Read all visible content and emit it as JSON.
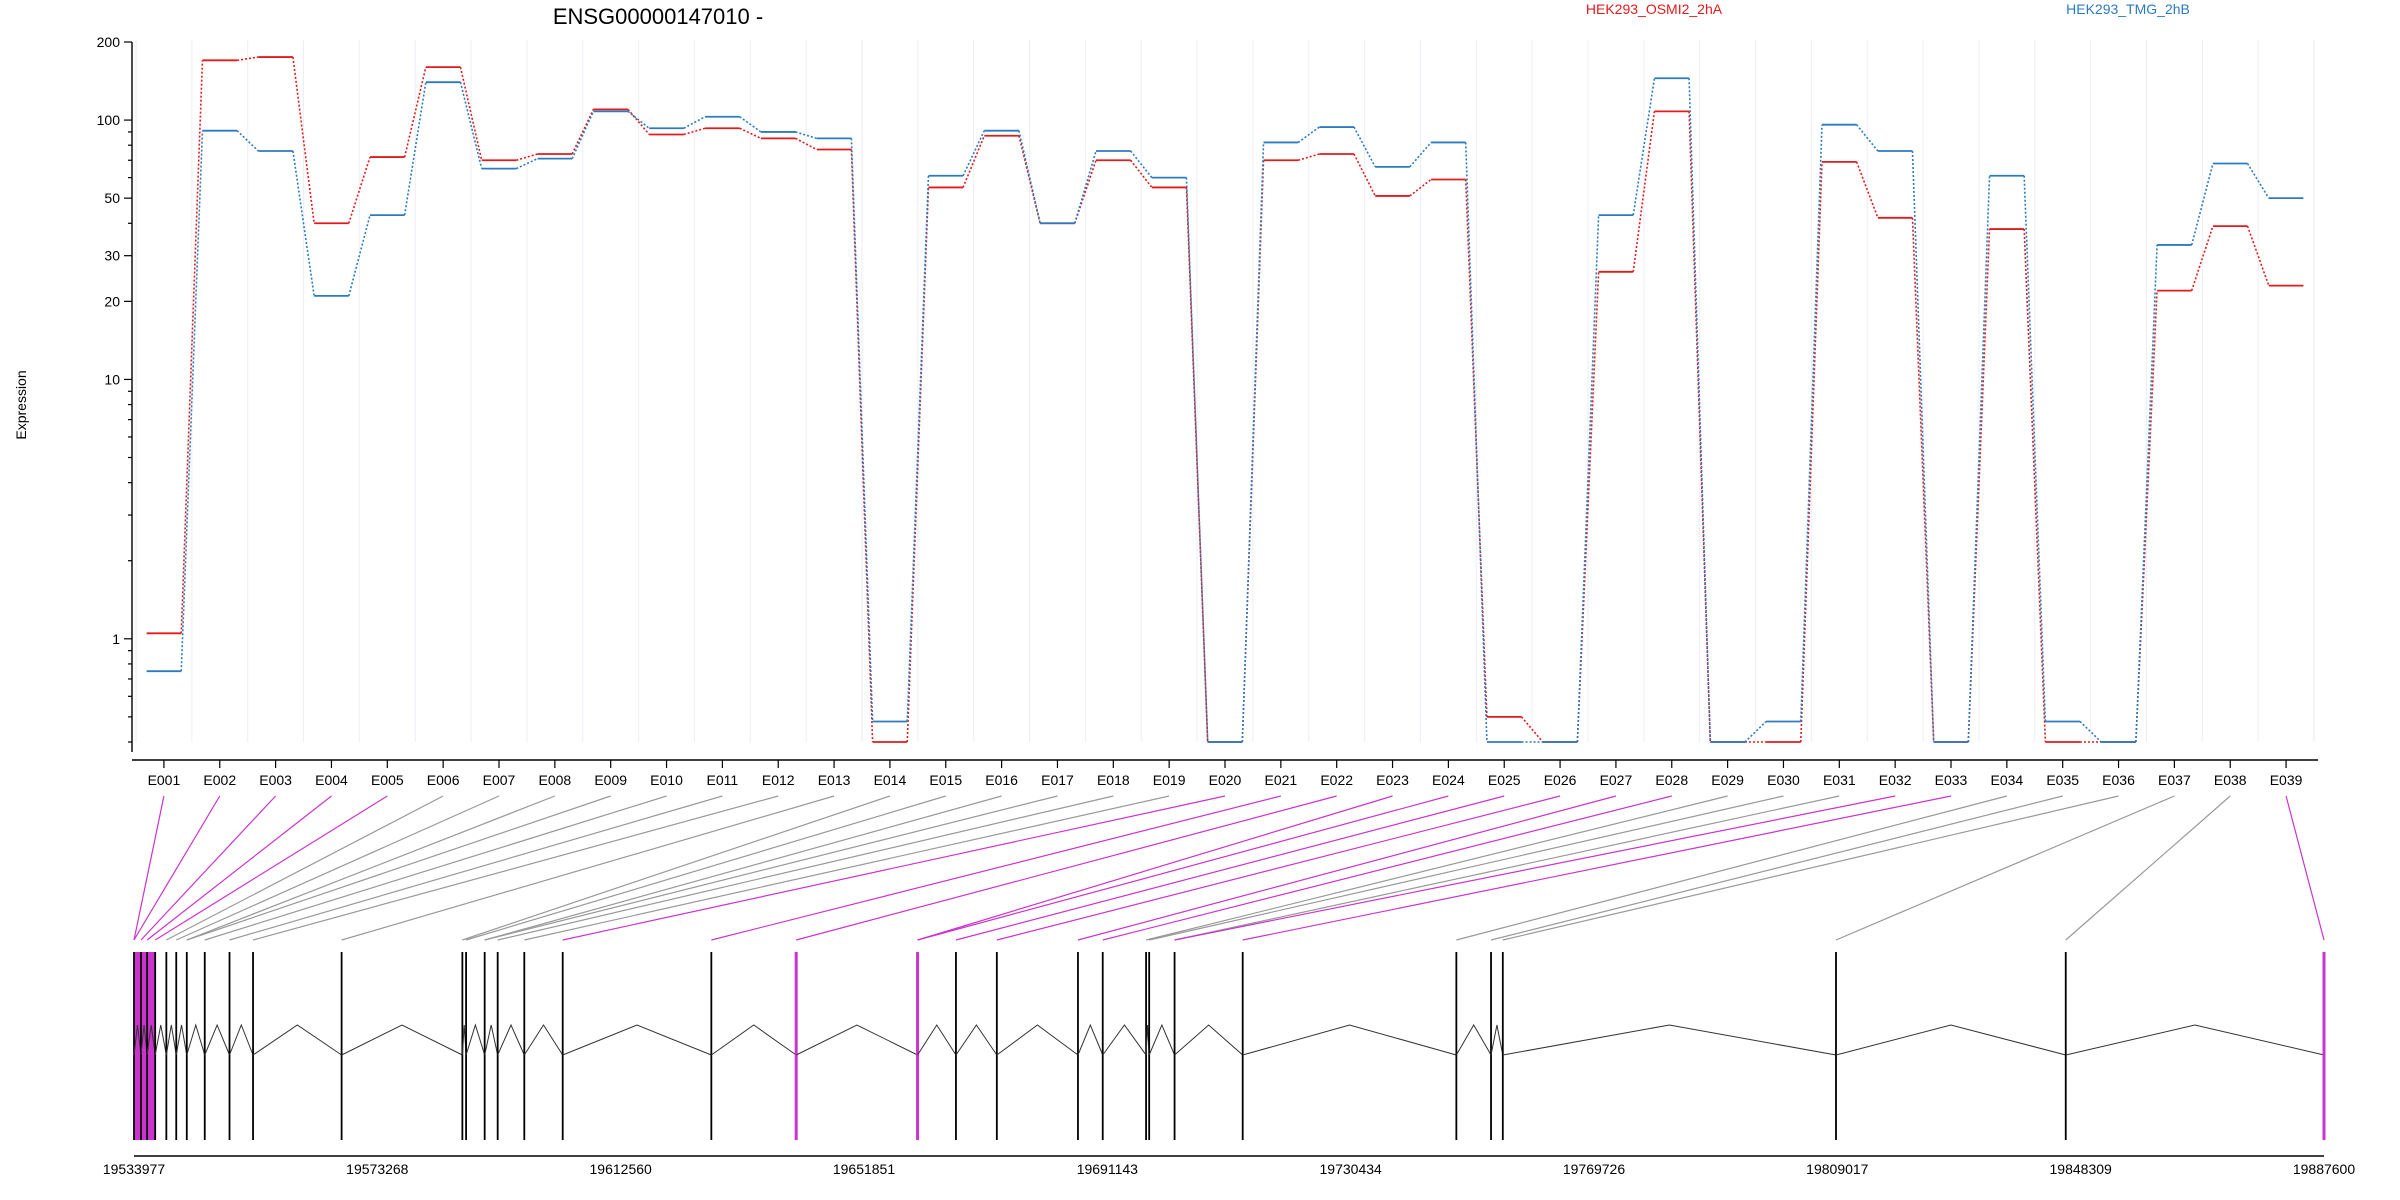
{
  "chart_data": {
    "type": "line",
    "title": "ENSG00000147010 -",
    "ylabel": "Expression",
    "xlabel": "",
    "y_scale": "log",
    "ylim": [
      0.4,
      200
    ],
    "y_ticks": [
      1,
      10,
      20,
      30,
      50,
      100,
      200
    ],
    "grid": "vertical lines at exon boundaries",
    "legend": [
      {
        "name": "HEK293_OSMI2_2hA",
        "color": "#e31a1c",
        "position": "top-center"
      },
      {
        "name": "HEK293_TMG_2hB",
        "color": "#2b7bbf",
        "position": "top-right"
      }
    ],
    "categories": [
      "E001",
      "E002",
      "E003",
      "E004",
      "E005",
      "E006",
      "E007",
      "E008",
      "E009",
      "E010",
      "E011",
      "E012",
      "E013",
      "E014",
      "E015",
      "E016",
      "E017",
      "E018",
      "E019",
      "E020",
      "E021",
      "E022",
      "E023",
      "E024",
      "E025",
      "E026",
      "E027",
      "E028",
      "E029",
      "E030",
      "E031",
      "E032",
      "E033",
      "E034",
      "E035",
      "E036",
      "E037",
      "E038",
      "E039"
    ],
    "series": [
      {
        "name": "HEK293_OSMI2_2hA",
        "color": "#e31a1c",
        "values": [
          1.05,
          170,
          175,
          40,
          72,
          160,
          70,
          74,
          110,
          88,
          93,
          85,
          77,
          0.4,
          55,
          87,
          40,
          70,
          55,
          0.4,
          70,
          74,
          51,
          59,
          0.5,
          0.4,
          26,
          108,
          0.4,
          0.4,
          69,
          42,
          0.4,
          38,
          0.4,
          0.4,
          22,
          39,
          23
        ]
      },
      {
        "name": "HEK293_TMG_2hB",
        "color": "#2b7bbf",
        "values": [
          0.75,
          91,
          76,
          21,
          43,
          140,
          65,
          71,
          108,
          93,
          103,
          90,
          85,
          0.48,
          61,
          91,
          40,
          76,
          60,
          0.4,
          82,
          94,
          66,
          82,
          0.4,
          0.4,
          43,
          145,
          0.4,
          0.48,
          96,
          76,
          0.4,
          61,
          0.48,
          0.4,
          33,
          68,
          50
        ]
      }
    ],
    "genome_axis": {
      "ticks": [
        "19533977",
        "19573268",
        "19612560",
        "19651851",
        "19691143",
        "19730434",
        "19769726",
        "19809017",
        "19848309",
        "19887600"
      ],
      "start": 19533977,
      "end": 19887600,
      "exons": [
        19533977,
        19535100,
        19536100,
        19537400,
        19539200,
        19540800,
        19542500,
        19545400,
        19549400,
        19553200,
        19567500,
        19587000,
        19587600,
        19590600,
        19592700,
        19597000,
        19603200,
        19627200,
        19640900,
        19660500,
        19666700,
        19673300,
        19686400,
        19690400,
        19697400,
        19697900,
        19702000,
        19713000,
        19747500,
        19753100,
        19755000,
        19808800,
        19845900,
        19887600
      ],
      "highlight_color": "#cc33cc",
      "highlighted_exons": [
        1,
        2,
        3,
        4,
        5,
        20,
        21,
        22,
        23,
        24,
        25,
        26,
        27,
        28,
        32,
        33,
        39
      ]
    }
  }
}
